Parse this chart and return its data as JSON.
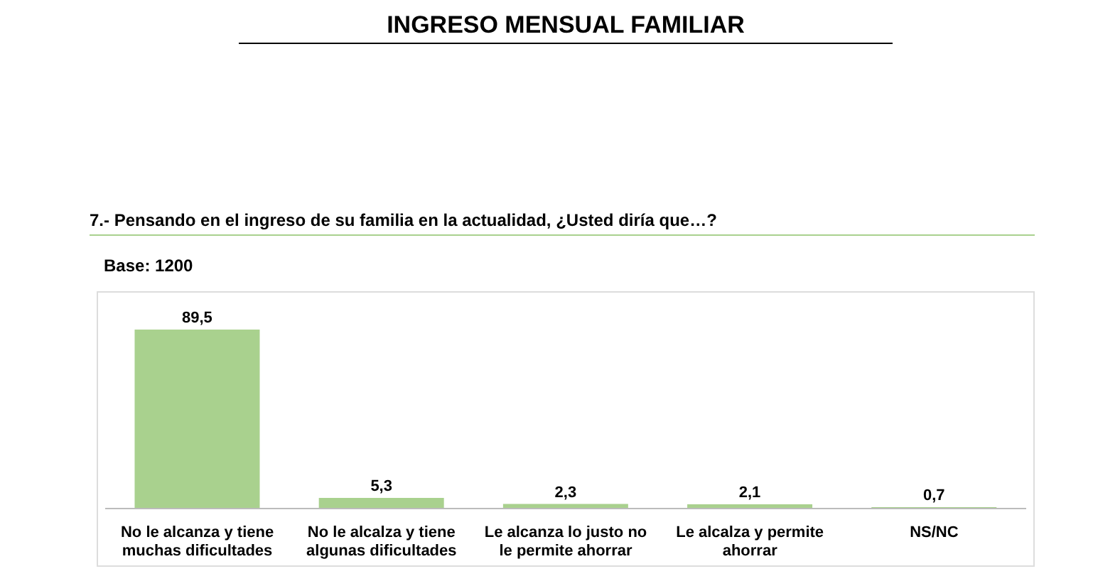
{
  "chart_data": {
    "type": "bar",
    "title": "INGRESO MENSUAL FAMILIAR",
    "subtitle": "7.- Pensando en el ingreso de su familia en la actualidad, ¿Usted diría que…?",
    "annotations": [
      "Base: 1200"
    ],
    "categories": [
      "No le alcanza y tiene muchas dificultades",
      "No le alcalza y tiene algunas dificultades",
      "Le alcanza lo justo no le permite ahorrar",
      "Le alcalza y permite ahorrar",
      "NS/NC"
    ],
    "values": [
      89.5,
      5.3,
      2.3,
      2.1,
      0.7
    ],
    "value_labels": [
      "89,5",
      "5,3",
      "2,3",
      "2,1",
      "0,7"
    ],
    "color": "#a9d18e"
  }
}
